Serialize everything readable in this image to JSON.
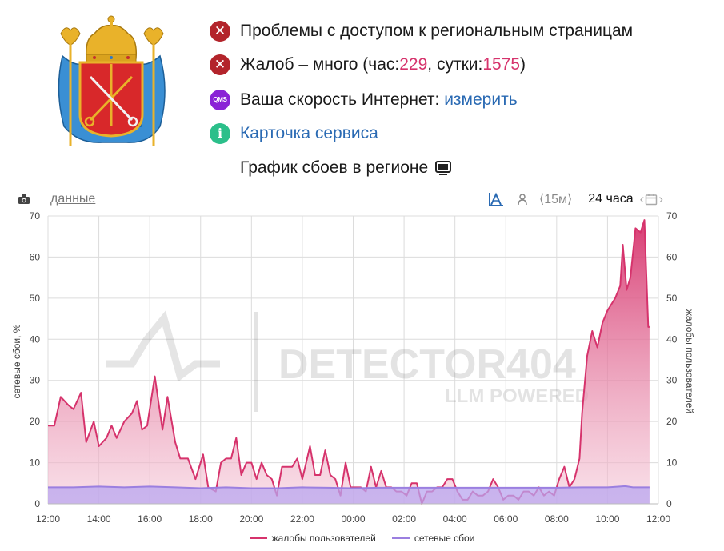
{
  "status": {
    "access": {
      "text": "Проблемы с доступом к региональным страницам",
      "icon": "close-icon"
    },
    "complaints": {
      "prefix": "Жалоб – много (час: ",
      "hour": "229",
      "mid": ", сутки: ",
      "day": "1575",
      "suffix": ")",
      "icon": "close-icon"
    },
    "speed": {
      "label": "Ваша скорость Интернет: ",
      "link": "измерить",
      "badge": "QMS"
    },
    "card": {
      "link": "Карточка сервиса",
      "badge": "i"
    }
  },
  "chart_header": {
    "title": "График сбоев в регионе"
  },
  "toolbar": {
    "data_link": "данные",
    "range_15m": "⟨15м⟩",
    "range_24h": "24 часа"
  },
  "watermark": {
    "line1": "DETECTOR404",
    "line2": "LLM POWERED"
  },
  "colors": {
    "complaints": "#d6336c",
    "network": "#9b7fe0",
    "error": "#b3242b",
    "link": "#2a6ab3"
  },
  "chart_data": {
    "type": "area",
    "title": "",
    "xlabel": "",
    "ylabel_left": "сетевые сбои, %",
    "ylabel_right": "жалобы пользователей",
    "ylim": [
      0,
      70
    ],
    "yticks": [
      "0",
      "10",
      "20",
      "30",
      "40",
      "50",
      "60",
      "70"
    ],
    "x_range_hours": [
      12,
      36
    ],
    "xticks": [
      "12:00",
      "14:00",
      "16:00",
      "18:00",
      "20:00",
      "22:00",
      "00:00",
      "02:00",
      "04:00",
      "06:00",
      "08:00",
      "10:00",
      "12:00"
    ],
    "series": [
      {
        "name": "жалобы пользователей",
        "points": [
          [
            12.0,
            19
          ],
          [
            12.25,
            19
          ],
          [
            12.5,
            26
          ],
          [
            12.8,
            24
          ],
          [
            13.0,
            23
          ],
          [
            13.3,
            27
          ],
          [
            13.5,
            15
          ],
          [
            13.8,
            20
          ],
          [
            14.0,
            14
          ],
          [
            14.3,
            16
          ],
          [
            14.5,
            19
          ],
          [
            14.7,
            16
          ],
          [
            15.0,
            20
          ],
          [
            15.3,
            22
          ],
          [
            15.5,
            25
          ],
          [
            15.7,
            18
          ],
          [
            15.9,
            19
          ],
          [
            16.2,
            31
          ],
          [
            16.5,
            18
          ],
          [
            16.7,
            26
          ],
          [
            17.0,
            15
          ],
          [
            17.2,
            11
          ],
          [
            17.5,
            11
          ],
          [
            17.8,
            6
          ],
          [
            18.1,
            12
          ],
          [
            18.3,
            4
          ],
          [
            18.6,
            3
          ],
          [
            18.8,
            10
          ],
          [
            19.0,
            11
          ],
          [
            19.2,
            11
          ],
          [
            19.4,
            16
          ],
          [
            19.6,
            7
          ],
          [
            19.8,
            10
          ],
          [
            20.0,
            10
          ],
          [
            20.2,
            6
          ],
          [
            20.4,
            10
          ],
          [
            20.6,
            7
          ],
          [
            20.8,
            6
          ],
          [
            21.0,
            2
          ],
          [
            21.2,
            9
          ],
          [
            21.4,
            9
          ],
          [
            21.6,
            9
          ],
          [
            21.8,
            11
          ],
          [
            22.0,
            6
          ],
          [
            22.3,
            14
          ],
          [
            22.5,
            7
          ],
          [
            22.7,
            7
          ],
          [
            22.9,
            13
          ],
          [
            23.1,
            7
          ],
          [
            23.3,
            6
          ],
          [
            23.5,
            2
          ],
          [
            23.7,
            10
          ],
          [
            23.9,
            4
          ],
          [
            24.1,
            4
          ],
          [
            24.3,
            4
          ],
          [
            24.5,
            3
          ],
          [
            24.7,
            9
          ],
          [
            24.9,
            4
          ],
          [
            25.1,
            8
          ],
          [
            25.3,
            4
          ],
          [
            25.5,
            4
          ],
          [
            25.7,
            3
          ],
          [
            25.9,
            3
          ],
          [
            26.1,
            2
          ],
          [
            26.3,
            5
          ],
          [
            26.5,
            5
          ],
          [
            26.7,
            0
          ],
          [
            26.9,
            3
          ],
          [
            27.1,
            3
          ],
          [
            27.3,
            4
          ],
          [
            27.5,
            4
          ],
          [
            27.7,
            6
          ],
          [
            27.9,
            6
          ],
          [
            28.1,
            3
          ],
          [
            28.3,
            1
          ],
          [
            28.5,
            1
          ],
          [
            28.7,
            3
          ],
          [
            28.9,
            2
          ],
          [
            29.1,
            2
          ],
          [
            29.3,
            3
          ],
          [
            29.5,
            6
          ],
          [
            29.7,
            4
          ],
          [
            29.9,
            1
          ],
          [
            30.1,
            2
          ],
          [
            30.3,
            2
          ],
          [
            30.5,
            1
          ],
          [
            30.7,
            3
          ],
          [
            30.9,
            3
          ],
          [
            31.1,
            2
          ],
          [
            31.3,
            4
          ],
          [
            31.5,
            2
          ],
          [
            31.7,
            3
          ],
          [
            31.9,
            2
          ],
          [
            32.1,
            6
          ],
          [
            32.3,
            9
          ],
          [
            32.5,
            4
          ],
          [
            32.7,
            6
          ],
          [
            32.9,
            11
          ],
          [
            33.0,
            22
          ],
          [
            33.2,
            36
          ],
          [
            33.4,
            42
          ],
          [
            33.6,
            38
          ],
          [
            33.8,
            44
          ],
          [
            34.0,
            47
          ],
          [
            34.3,
            50
          ],
          [
            34.5,
            53
          ],
          [
            34.6,
            63
          ],
          [
            34.75,
            52
          ],
          [
            34.9,
            55
          ],
          [
            35.1,
            67
          ],
          [
            35.3,
            66
          ],
          [
            35.45,
            69
          ],
          [
            35.6,
            43
          ],
          [
            35.65,
            43
          ]
        ]
      },
      {
        "name": "сетевые сбои",
        "points": [
          [
            12.0,
            4
          ],
          [
            13.0,
            4
          ],
          [
            14.0,
            4.2
          ],
          [
            15.0,
            4
          ],
          [
            16.0,
            4.2
          ],
          [
            17.0,
            4
          ],
          [
            18.0,
            3.8
          ],
          [
            19.0,
            4
          ],
          [
            20.0,
            3.8
          ],
          [
            21.0,
            3.8
          ],
          [
            22.0,
            4
          ],
          [
            23.0,
            3.9
          ],
          [
            24.0,
            3.8
          ],
          [
            25.0,
            3.9
          ],
          [
            26.0,
            3.9
          ],
          [
            27.0,
            3.9
          ],
          [
            28.0,
            3.9
          ],
          [
            29.0,
            3.9
          ],
          [
            30.0,
            3.9
          ],
          [
            31.0,
            3.9
          ],
          [
            32.0,
            3.9
          ],
          [
            33.0,
            4
          ],
          [
            34.0,
            4
          ],
          [
            34.7,
            4.3
          ],
          [
            35.0,
            4
          ],
          [
            35.65,
            4
          ]
        ]
      }
    ],
    "legend": [
      "жалобы пользователей",
      "сетевые сбои"
    ],
    "legend_position": "bottom",
    "grid": true
  }
}
